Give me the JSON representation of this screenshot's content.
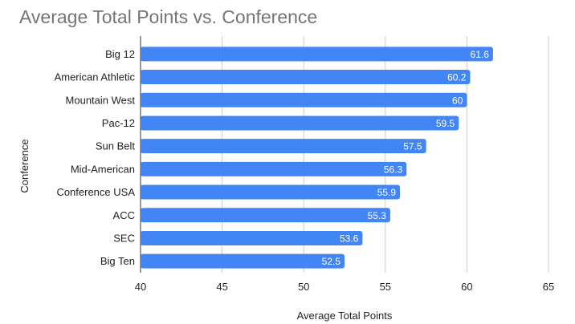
{
  "chart_data": {
    "type": "bar",
    "orientation": "horizontal",
    "title": "Average Total Points vs. Conference",
    "xlabel": "Average Total Points",
    "ylabel": "Conference",
    "categories": [
      "Big 12",
      "American Athletic",
      "Mountain West",
      "Pac-12",
      "Sun Belt",
      "Mid-American",
      "Conference USA",
      "ACC",
      "SEC",
      "Big Ten"
    ],
    "values": [
      61.6,
      60.2,
      60,
      59.5,
      57.5,
      56.3,
      55.9,
      55.3,
      53.6,
      52.5
    ],
    "value_labels": [
      "61.6",
      "60.2",
      "60",
      "59.5",
      "57.5",
      "56.3",
      "55.9",
      "55.3",
      "53.6",
      "52.5"
    ],
    "xlim": [
      40,
      65
    ],
    "xticks": [
      40,
      45,
      50,
      55,
      60,
      65
    ],
    "grid": true,
    "legend": "none",
    "colors": {
      "bar": "#4285f4",
      "grid": "#cccccc",
      "title": "#757575",
      "text": "#222222"
    }
  }
}
